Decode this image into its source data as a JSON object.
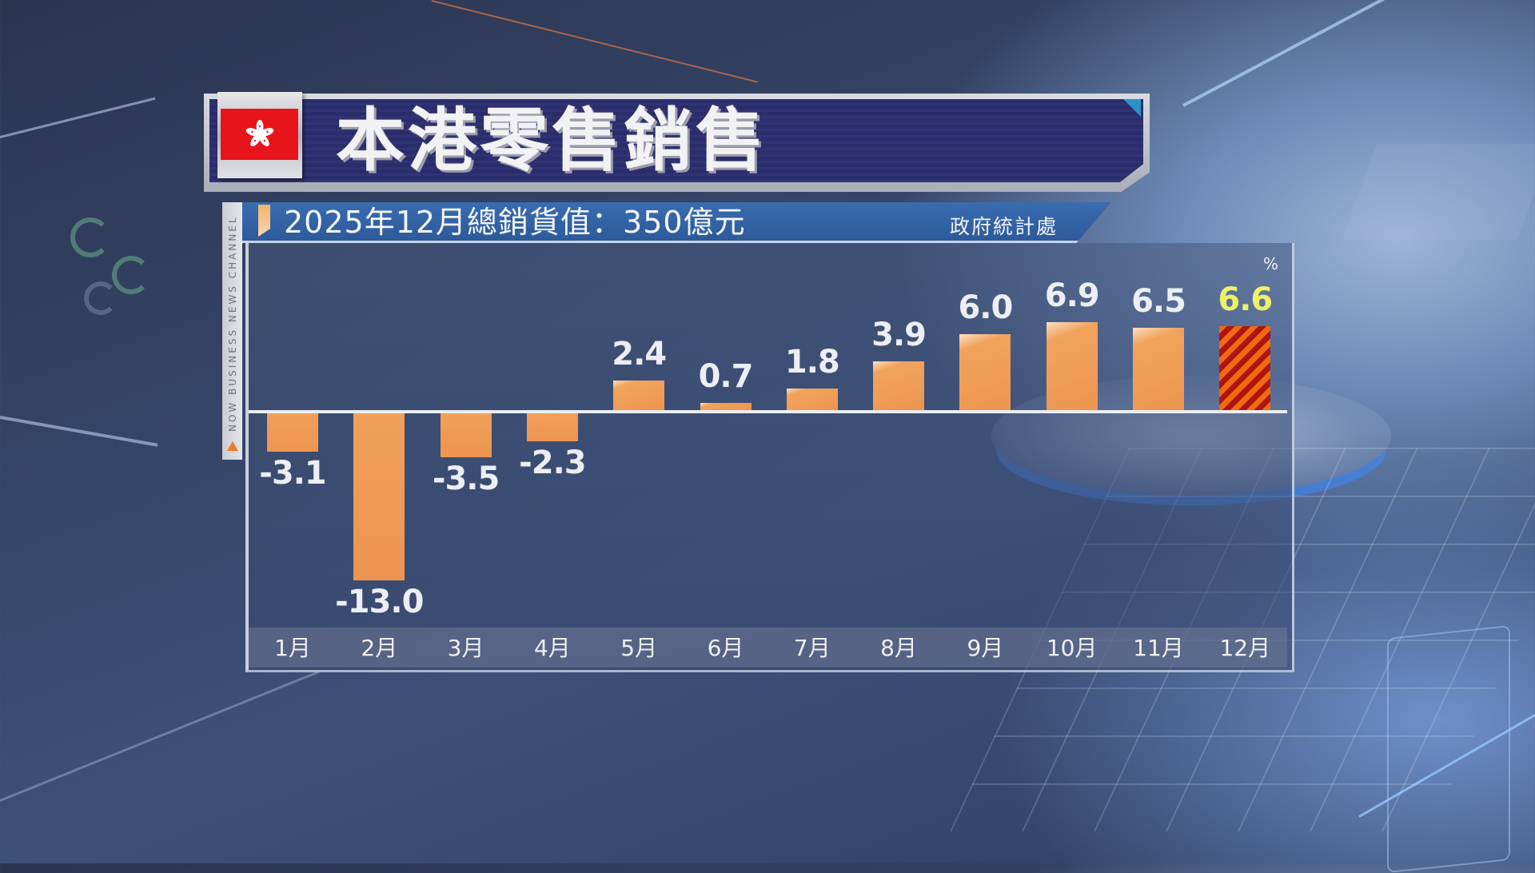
{
  "header": {
    "flag": "hong-kong-flag",
    "title": "本港零售銷售",
    "subtitle": "2025年12月總銷貨值：350億元",
    "source": "政府統計處",
    "channel": "NOW BUSINESS NEWS CHANNEL"
  },
  "colors": {
    "title_bar": "#2b2d6b",
    "subtitle_bar": "#2f5fa0",
    "bar": "#ec9550",
    "highlight_stripe_a": "#f06a10",
    "highlight_stripe_b": "#b0140e",
    "highlight_label": "#eef06a",
    "zero_line": "#eceef2"
  },
  "chart_data": {
    "type": "bar",
    "title": "本港零售銷售",
    "subtitle": "2025年12月總銷貨值：350億元",
    "source": "政府統計處",
    "unit": "%",
    "xlabel": "",
    "ylabel": "%",
    "categories": [
      "1月",
      "2月",
      "3月",
      "4月",
      "5月",
      "6月",
      "7月",
      "8月",
      "9月",
      "10月",
      "11月",
      "12月"
    ],
    "values": [
      -3.1,
      -13.0,
      -3.5,
      -2.3,
      2.4,
      0.7,
      1.8,
      3.9,
      6.0,
      6.9,
      6.5,
      6.6
    ],
    "labels": [
      "-3.1",
      "-13.0",
      "-3.5",
      "-2.3",
      "2.4",
      "0.7",
      "1.8",
      "3.9",
      "6.0",
      "6.9",
      "6.5",
      "6.6"
    ],
    "highlight_index": 11,
    "ylim": [
      -13.5,
      9
    ],
    "grid": false,
    "legend": null
  }
}
